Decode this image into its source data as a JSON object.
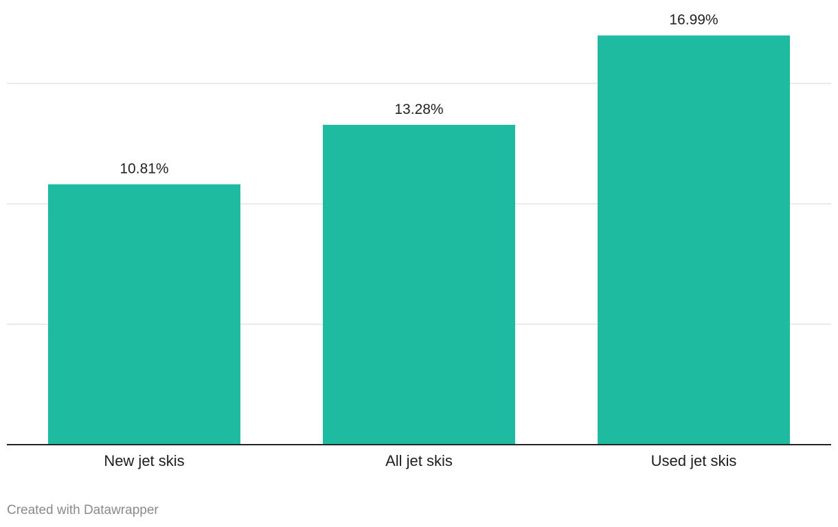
{
  "chart_data": {
    "type": "bar",
    "categories": [
      "New jet skis",
      "All jet skis",
      "Used jet skis"
    ],
    "values": [
      10.81,
      13.28,
      16.99
    ],
    "value_labels": [
      "10.81%",
      "13.28%",
      "16.99%"
    ],
    "title": "",
    "xlabel": "",
    "ylabel": "",
    "ylim": [
      0,
      15
    ],
    "grid": true,
    "bar_color": "#1fbba1"
  },
  "footer": {
    "credit": "Created with Datawrapper"
  }
}
